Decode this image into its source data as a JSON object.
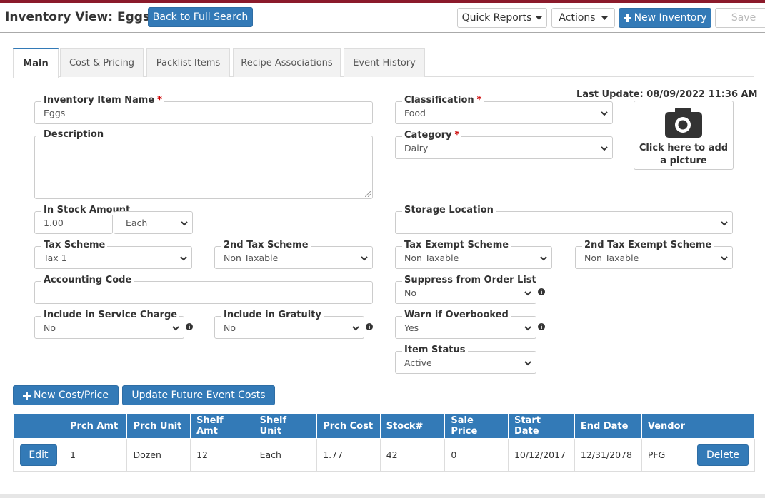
{
  "header": {
    "title": "Inventory View: Eggs",
    "back": "Back to Full Search",
    "quick_reports": "Quick Reports",
    "actions": "Actions",
    "new_inventory": "New Inventory",
    "save": "Save"
  },
  "tabs": [
    "Main",
    "Cost & Pricing",
    "Packlist Items",
    "Recipe Associations",
    "Event History"
  ],
  "last_update": "Last Update: 08/09/2022 11:36 AM",
  "picture": "Click here to add a picture",
  "fields": [
    {
      "label": "Inventory Item Name",
      "required": "*",
      "value": "Eggs"
    },
    {
      "label": "Description"
    },
    {
      "label": "In Stock Amount",
      "value": "1.00",
      "unit": "Each"
    },
    {
      "label": "Tax Scheme",
      "value": "Tax 1"
    },
    {
      "label": "2nd Tax Scheme",
      "value": "Non Taxable"
    },
    {
      "label": "Accounting Code"
    },
    {
      "label": "Include in Service Charge",
      "value": "No"
    },
    {
      "label": "Include in Gratuity",
      "value": "No"
    },
    {
      "label": "Classification",
      "required": "*",
      "value": "Food"
    },
    {
      "label": "Category",
      "required": "*",
      "value": "Dairy"
    },
    {
      "label": "Storage Location"
    },
    {
      "label": "Tax Exempt Scheme",
      "value": "Non Taxable"
    },
    {
      "label": "2nd Tax Exempt Scheme",
      "value": "Non Taxable"
    },
    {
      "label": "Suppress from Order List",
      "value": "No"
    },
    {
      "label": "Warn if Overbooked",
      "value": "Yes"
    },
    {
      "label": "Item Status",
      "value": "Active"
    }
  ],
  "buttons": {
    "new_cost": "New Cost/Price",
    "update_costs": "Update Future Event Costs"
  },
  "table": {
    "columns": [
      "Prch Amt",
      "Prch Unit",
      "Shelf Amt",
      "Shelf Unit",
      "Prch Cost",
      "Stock#",
      "Sale Price",
      "Start Date",
      "End Date",
      "Vendor"
    ],
    "rows": [
      {
        "edit": "Edit",
        "cells": [
          "1",
          "Dozen",
          "12",
          "Each",
          "1.77",
          "42",
          "0",
          "10/12/2017",
          "12/31/2078",
          "PFG"
        ],
        "delete": "Delete"
      }
    ]
  }
}
